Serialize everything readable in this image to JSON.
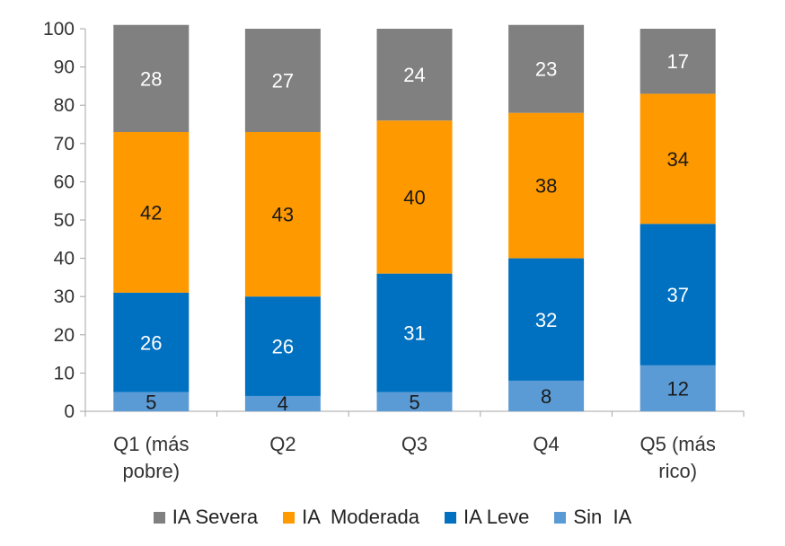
{
  "chart_data": {
    "type": "bar",
    "stacked": true,
    "categories": [
      "Q1 (más pobre)",
      "Q2",
      "Q3",
      "Q4",
      "Q5 (más rico)"
    ],
    "category_lines": [
      [
        "Q1 (más",
        "pobre)"
      ],
      [
        "Q2"
      ],
      [
        "Q3"
      ],
      [
        "Q4"
      ],
      [
        "Q5 (más",
        "rico)"
      ]
    ],
    "series": [
      {
        "name": "Sin  IA",
        "values": [
          5,
          4,
          5,
          8,
          12
        ],
        "color": "#5B9BD5",
        "label_color": "#1a1a1a"
      },
      {
        "name": "IA Leve",
        "values": [
          26,
          26,
          31,
          32,
          37
        ],
        "color": "#0070C0",
        "label_color": "#ffffff"
      },
      {
        "name": "IA  Moderada",
        "values": [
          42,
          43,
          40,
          38,
          34
        ],
        "color": "#FF9900",
        "label_color": "#1a1a1a"
      },
      {
        "name": "IA Severa",
        "values": [
          28,
          27,
          24,
          23,
          17
        ],
        "color": "#808080",
        "label_color": "#ffffff"
      }
    ],
    "legend_order": [
      3,
      2,
      1,
      0
    ],
    "ylim": [
      0,
      100
    ],
    "yticks": [
      0,
      10,
      20,
      30,
      40,
      50,
      60,
      70,
      80,
      90,
      100
    ],
    "grid": false,
    "legend_position": "bottom",
    "title": "",
    "xlabel": "",
    "ylabel": ""
  }
}
